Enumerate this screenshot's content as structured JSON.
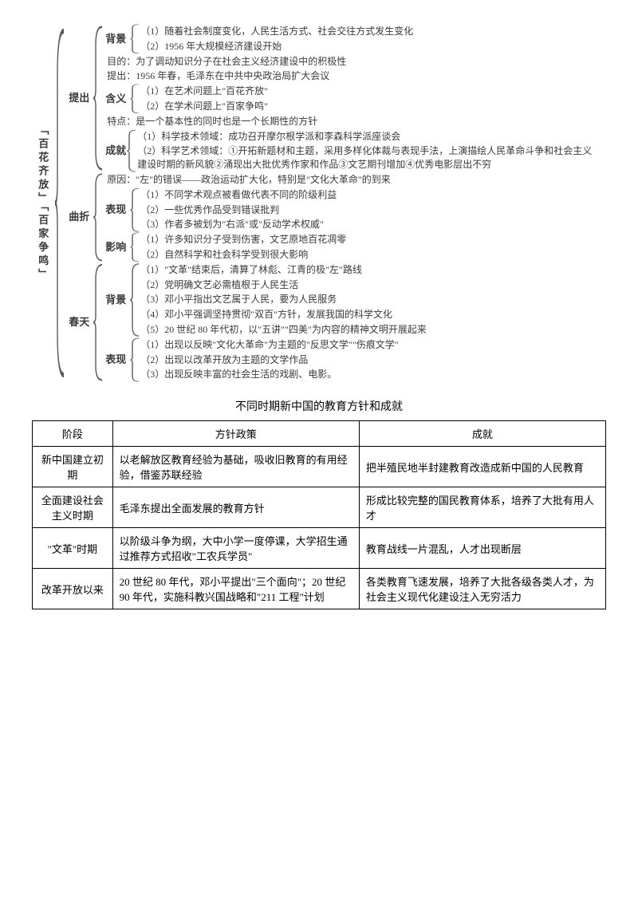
{
  "diagram": {
    "title": "「百花齐放」「百家争鸣」",
    "sections": [
      {
        "label": "提出",
        "children": [
          {
            "label": "背景",
            "items": [
              "（1）随着社会制度变化，人民生活方式、社会交往方式发生变化",
              "（2）1956 年大规模经济建设开始"
            ]
          },
          {
            "text": "目的：为了调动知识分子在社会主义经济建设中的积极性"
          },
          {
            "text": "提出：1956 年春，毛泽东在中共中央政治局扩大会议"
          },
          {
            "label": "含义",
            "items": [
              "（1）在艺术问题上\"百花齐放\"",
              "（2）在学术问题上\"百家争鸣\""
            ]
          },
          {
            "text": "特点：是一个基本性的同时也是一个长期性的方针"
          },
          {
            "label": "成就",
            "items": [
              "（1）科学技术领域：成功召开摩尔根学派和李森科学派座谈会",
              "（2）科学艺术领域：①开拓新题材和主题，采用多样化体裁与表现手法，上演描绘人民革命斗争和社会主义建设时期的新风貌②涌现出大批优秀作家和作品③文艺期刊增加④优秀电影层出不穷"
            ]
          }
        ]
      },
      {
        "label": "曲折",
        "children": [
          {
            "text": "原因：\"左\"的错误——政治运动扩大化，特别是\"文化大革命\"的到来"
          },
          {
            "label": "表现",
            "items": [
              "（1）不同学术观点被看做代表不同的阶级利益",
              "（2）一些优秀作品受到错误批判",
              "（3）作者多被划为\"右派\"或\"反动学术权威\""
            ]
          },
          {
            "label": "影响",
            "items": [
              "（1）许多知识分子受到伤害，文艺原地百花凋零",
              "（2）自然科学和社会科学受到很大影响"
            ]
          }
        ]
      },
      {
        "label": "春天",
        "children": [
          {
            "label": "背景",
            "items": [
              "（1）\"文革\"结束后，清算了林彪、江青的极\"左\"路线",
              "（2）党明确文艺必需植根于人民生活",
              "（3）邓小平指出文艺属于人民，要为人民服务",
              "（4）邓小平强调坚持贯彻\"双百\"方针，发展我国的科学文化",
              "（5）20 世纪 80 年代初，以\"五讲\"\"四美\"为内容的精神文明开展起来"
            ]
          },
          {
            "label": "表现",
            "items": [
              "（1）出现以反映\"文化大革命\"为主题的\"反思文学\"\"伤痕文学\"",
              "（2）出现以改革开放为主题的文学作品",
              "（3）出现反映丰富的社会生活的戏剧、电影。"
            ]
          }
        ]
      }
    ]
  },
  "table": {
    "title": "不同时期新中国的教育方针和成就",
    "columns": [
      "阶段",
      "方针政策",
      "成就"
    ],
    "col_widths": [
      "14%",
      "43%",
      "43%"
    ],
    "rows": [
      [
        "新中国建立初期",
        "以老解放区教育经验为基础，吸收旧教育的有用经验，借鉴苏联经验",
        "把半殖民地半封建教育改造成新中国的人民教育"
      ],
      [
        "全面建设社会主义时期",
        "毛泽东提出全面发展的教育方针",
        "形成比较完整的国民教育体系，培养了大批有用人才"
      ],
      [
        "\"文革\"时期",
        "以阶级斗争为纲，大中小学一度停课，大学招生通过推荐方式招收\"工农兵学员\"",
        "教育战线一片混乱，人才出现断层"
      ],
      [
        "改革开放以来",
        "20 世纪 80 年代，邓小平提出\"三个面向\"；20 世纪 90 年代，实施科教兴国战略和\"211 工程\"计划",
        "各类教育飞速发展，培养了大批各级各类人才，为社会主义现代化建设注入无穷活力"
      ]
    ]
  },
  "colors": {
    "text": "#3a3a3a",
    "border": "#000000",
    "bg": "#ffffff",
    "brace": "#5a5a5a"
  }
}
